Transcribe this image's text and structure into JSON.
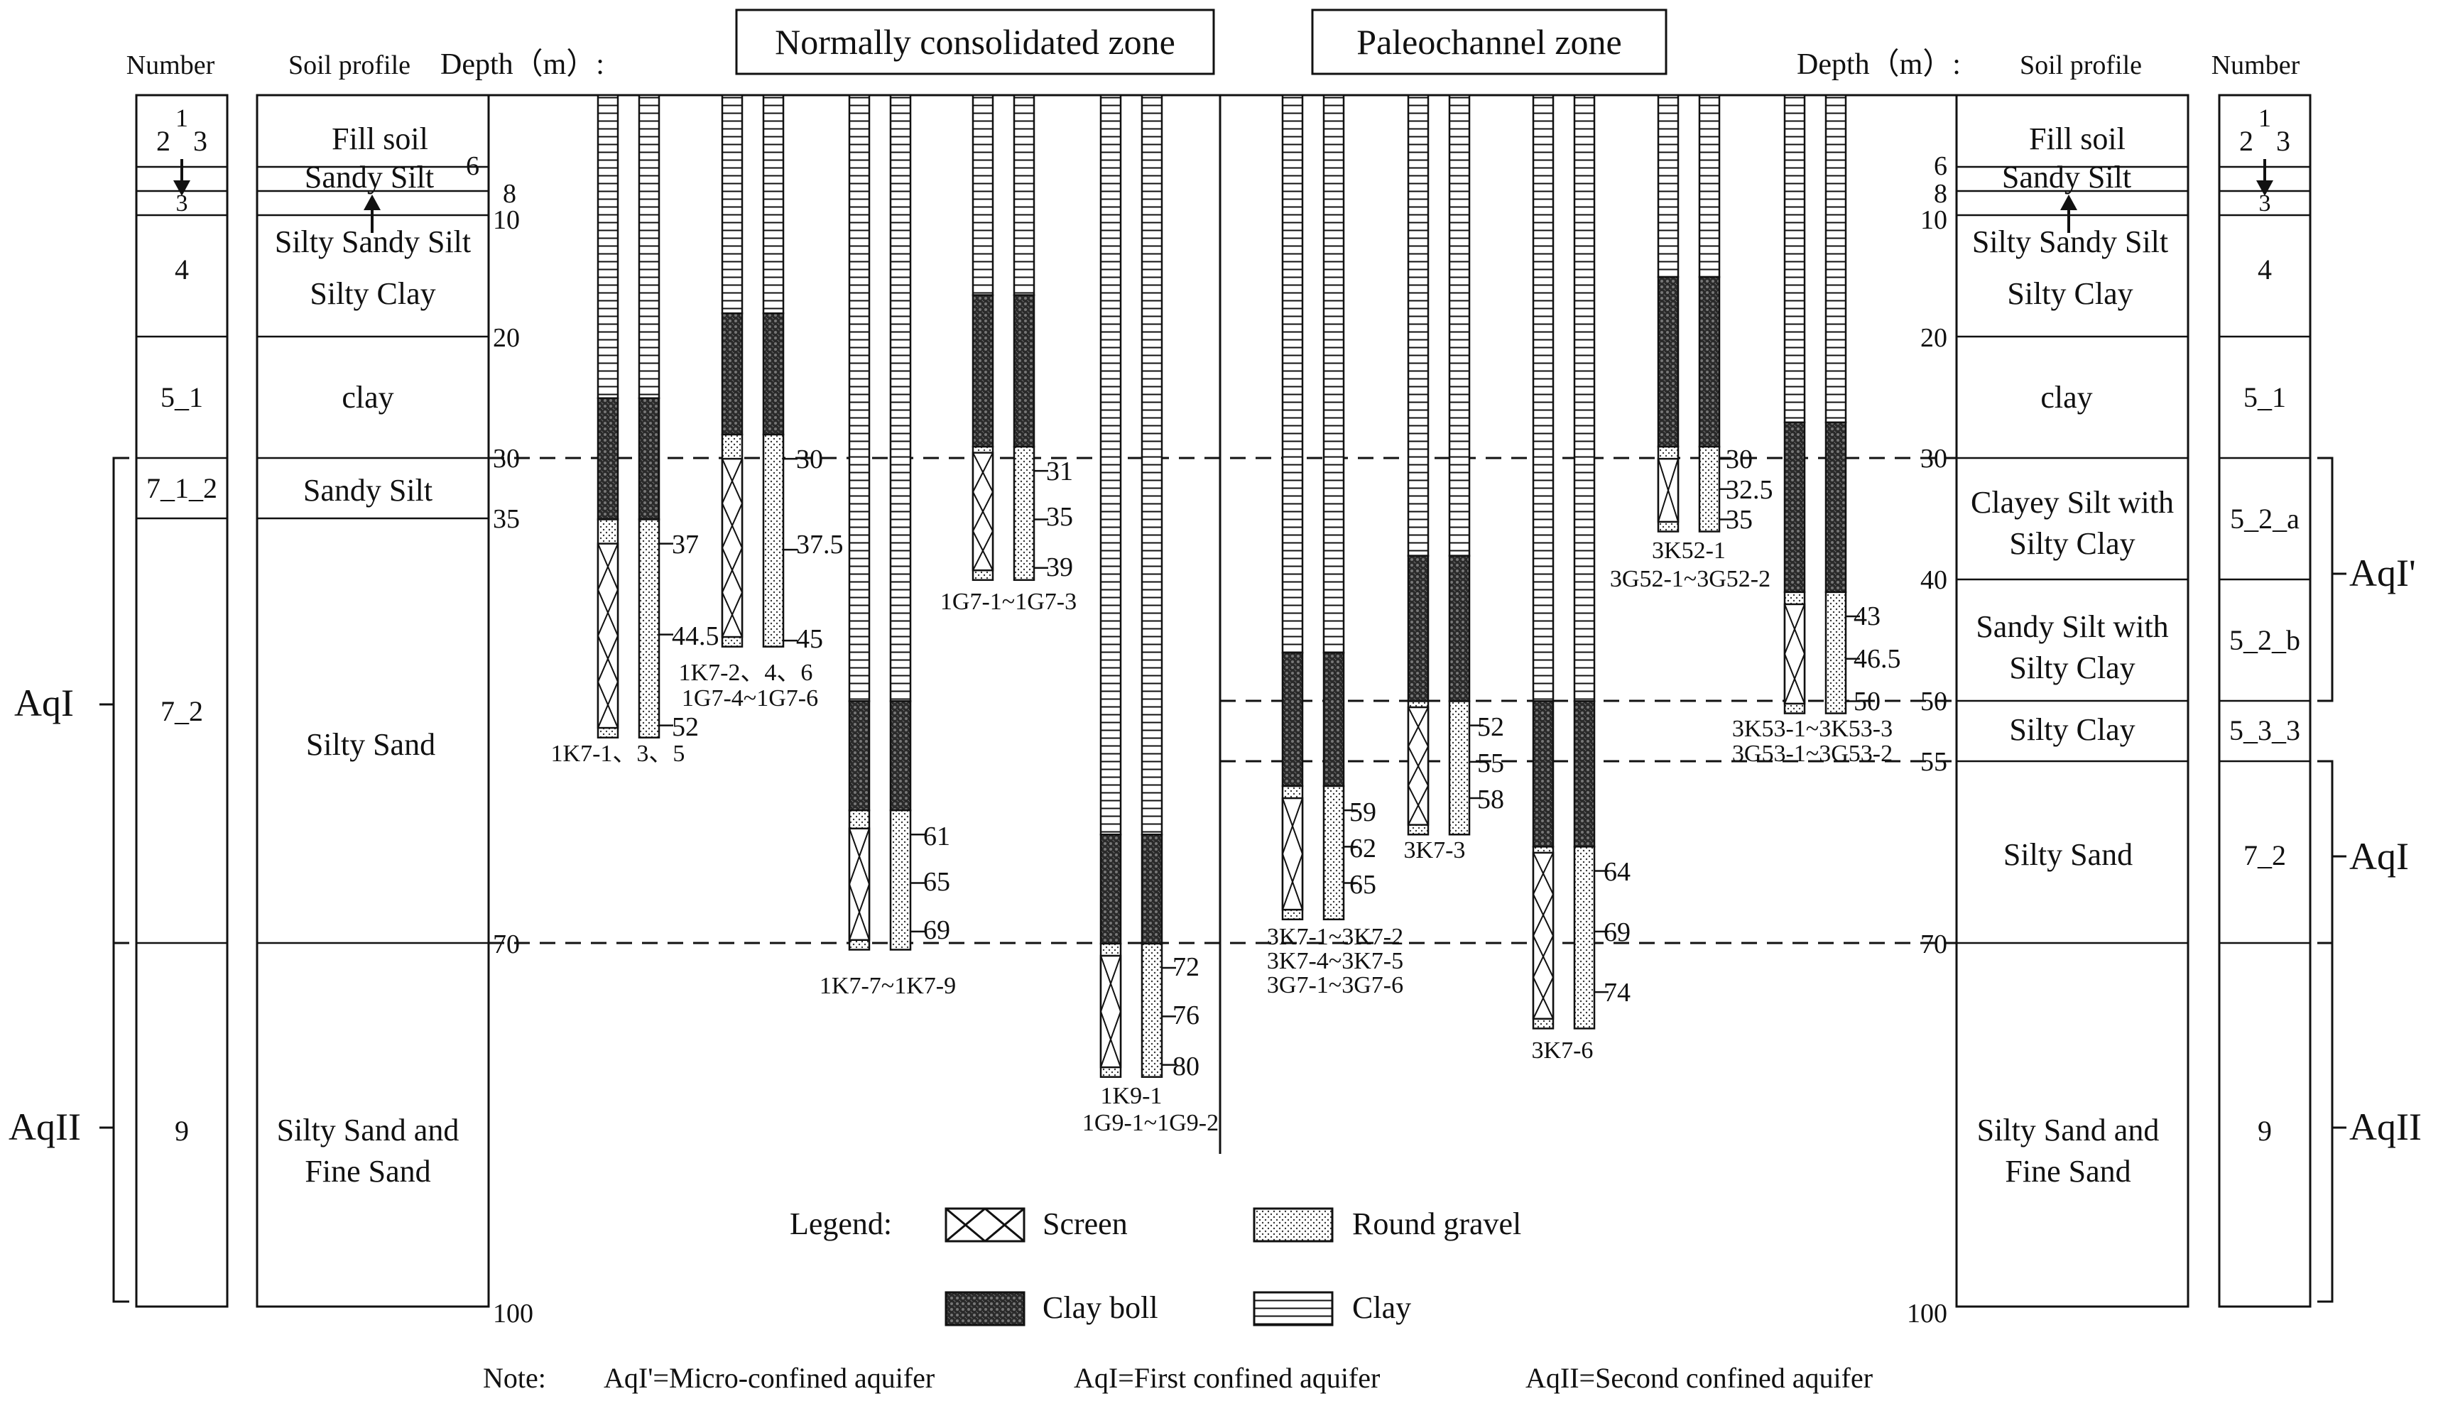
{
  "headers": {
    "number": "Number",
    "soil_profile": "Soil profile",
    "depth_left": "Depth（m）:",
    "depth_right": "Depth（m）:"
  },
  "zones": {
    "normal": "Normally consolidated zone",
    "paleo": "Paleochannel zone"
  },
  "depth_ticks": [
    "6",
    "8",
    "10",
    "20",
    "30",
    "35",
    "40",
    "50",
    "55",
    "70",
    "100"
  ],
  "left_profile": {
    "numbers": [
      "1",
      "2",
      "3",
      "3",
      "4",
      "5_1",
      "7_1_2",
      "7_2",
      "9"
    ],
    "soils": [
      "Fill soil",
      "Sandy Silt",
      "Silty Sandy Silt",
      "Silty Clay",
      "clay",
      "Sandy Silt",
      "Silty Sand",
      "Silty Sand and",
      "Fine Sand"
    ]
  },
  "right_profile": {
    "numbers": [
      "1",
      "2",
      "3",
      "3",
      "4",
      "5_1",
      "5_2_a",
      "5_2_b",
      "5_3_3",
      "7_2",
      "9"
    ],
    "soils": [
      "Fill soil",
      "Sandy Silt",
      "Silty Sandy Silt",
      "Silty Clay",
      "clay",
      "Clayey Silt with",
      "Silty Clay",
      "Sandy Silt with",
      "Silty Clay",
      "Silty Clay",
      "Silty Sand",
      "Silty Sand and",
      "Fine Sand"
    ]
  },
  "aquifers": {
    "left": [
      "AqI",
      "AqII"
    ],
    "right": [
      "AqI'",
      "AqI",
      "AqII"
    ]
  },
  "well_labels": {
    "w1": [
      "1K7-1、3、5"
    ],
    "w2": [
      "1K7-2、4、6",
      "1G7-4~1G7-6"
    ],
    "w3": [
      "1K7-7~1K7-9"
    ],
    "w4": [
      "1G7-1~1G7-3"
    ],
    "w5": [
      "1K9-1",
      "1G9-1~1G9-2"
    ],
    "w6": [
      "3K7-1~3K7-2",
      "3K7-4~3K7-5",
      "3G7-1~3G7-6"
    ],
    "w7": [
      "3K7-3"
    ],
    "w8": [
      "3K7-6"
    ],
    "w9": [
      "3K52-1",
      "3G52-1~3G52-2"
    ],
    "w10": [
      "3K53-1~3K53-3",
      "3G53-1~3G53-2"
    ]
  },
  "screen_depths": {
    "w1": [
      "37",
      "44.5",
      "52"
    ],
    "w2": [
      "30",
      "37.5",
      "45"
    ],
    "w3": [
      "61",
      "65",
      "69"
    ],
    "w4": [
      "31",
      "35",
      "39"
    ],
    "w5": [
      "72",
      "76",
      "80"
    ],
    "w6": [
      "59",
      "62",
      "65"
    ],
    "w7": [
      "52",
      "55",
      "58"
    ],
    "w8": [
      "64",
      "69",
      "74"
    ],
    "w9": [
      "30",
      "32.5",
      "35"
    ],
    "w10": [
      "43",
      "46.5",
      "50"
    ]
  },
  "legend": {
    "title": "Legend:",
    "screen": "Screen",
    "round_gravel": "Round gravel",
    "clay_boll": "Clay boll",
    "clay": "Clay"
  },
  "note": {
    "label": "Note:",
    "aq1p": "AqI'=Micro-confined aquifer",
    "aq1": "AqI=First confined aquifer",
    "aq2": "AqII=Second confined aquifer"
  }
}
